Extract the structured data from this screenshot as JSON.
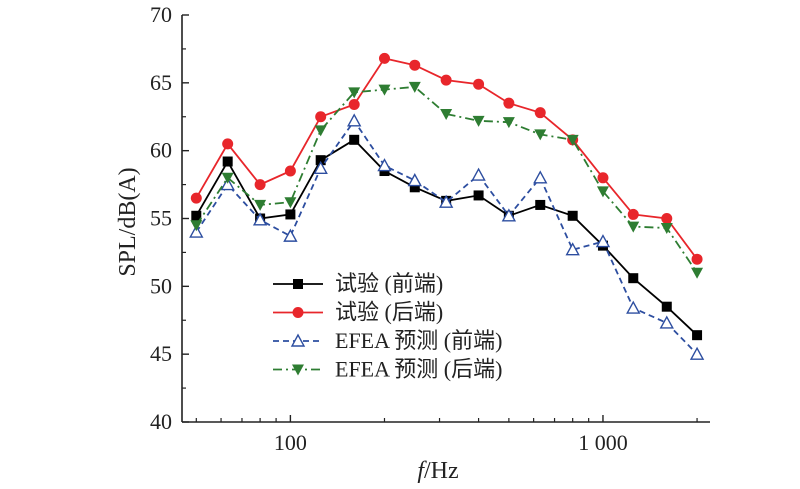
{
  "chart_data": {
    "type": "line",
    "x_scale": "log",
    "x": [
      50,
      63,
      80,
      100,
      125,
      160,
      200,
      250,
      315,
      400,
      500,
      630,
      800,
      1000,
      1250,
      1600,
      2000
    ],
    "xlim": [
      45,
      2200
    ],
    "ylim": [
      40,
      70
    ],
    "xlabel_italic": "f",
    "xlabel_rest": "/Hz",
    "ylabel": "SPL/dB(A)",
    "y_ticks": [
      "40",
      "45",
      "50",
      "55",
      "60",
      "65",
      "70"
    ],
    "x_ticks": [
      {
        "value": 100,
        "label": "100"
      },
      {
        "value": 1000,
        "label": "1 000"
      }
    ],
    "grid": false,
    "legend_position": "bottom-center",
    "series": [
      {
        "name": "试验 (前端)",
        "color": "#000000",
        "marker": "square",
        "line": "solid",
        "values": [
          55.2,
          59.2,
          55.0,
          55.3,
          59.3,
          60.8,
          58.5,
          57.3,
          56.3,
          56.7,
          55.2,
          56.0,
          55.2,
          53.0,
          50.6,
          48.5,
          46.4
        ]
      },
      {
        "name": "试验 (后端)",
        "color": "#e8262b",
        "marker": "circle",
        "line": "solid",
        "values": [
          56.5,
          60.5,
          57.5,
          58.5,
          62.5,
          63.4,
          66.8,
          66.3,
          65.2,
          64.9,
          63.5,
          62.8,
          60.8,
          58.0,
          55.3,
          55.0,
          52.0
        ]
      },
      {
        "name": "EFEA 预测 (前端)",
        "color": "#2d4ea0",
        "marker": "triangle-up-open",
        "line": "dashed",
        "values": [
          54.0,
          57.5,
          54.9,
          53.7,
          58.7,
          62.2,
          58.9,
          57.8,
          56.2,
          58.2,
          55.2,
          58.0,
          52.7,
          53.3,
          48.4,
          47.3,
          45.0
        ]
      },
      {
        "name": "EFEA 预测 (后端)",
        "color": "#2e7d32",
        "marker": "triangle-down",
        "line": "dashdot",
        "values": [
          54.5,
          58.0,
          56.0,
          56.2,
          61.5,
          64.3,
          64.5,
          64.7,
          62.7,
          62.2,
          62.1,
          61.2,
          60.8,
          57.0,
          54.4,
          54.3,
          51.0
        ]
      }
    ]
  }
}
